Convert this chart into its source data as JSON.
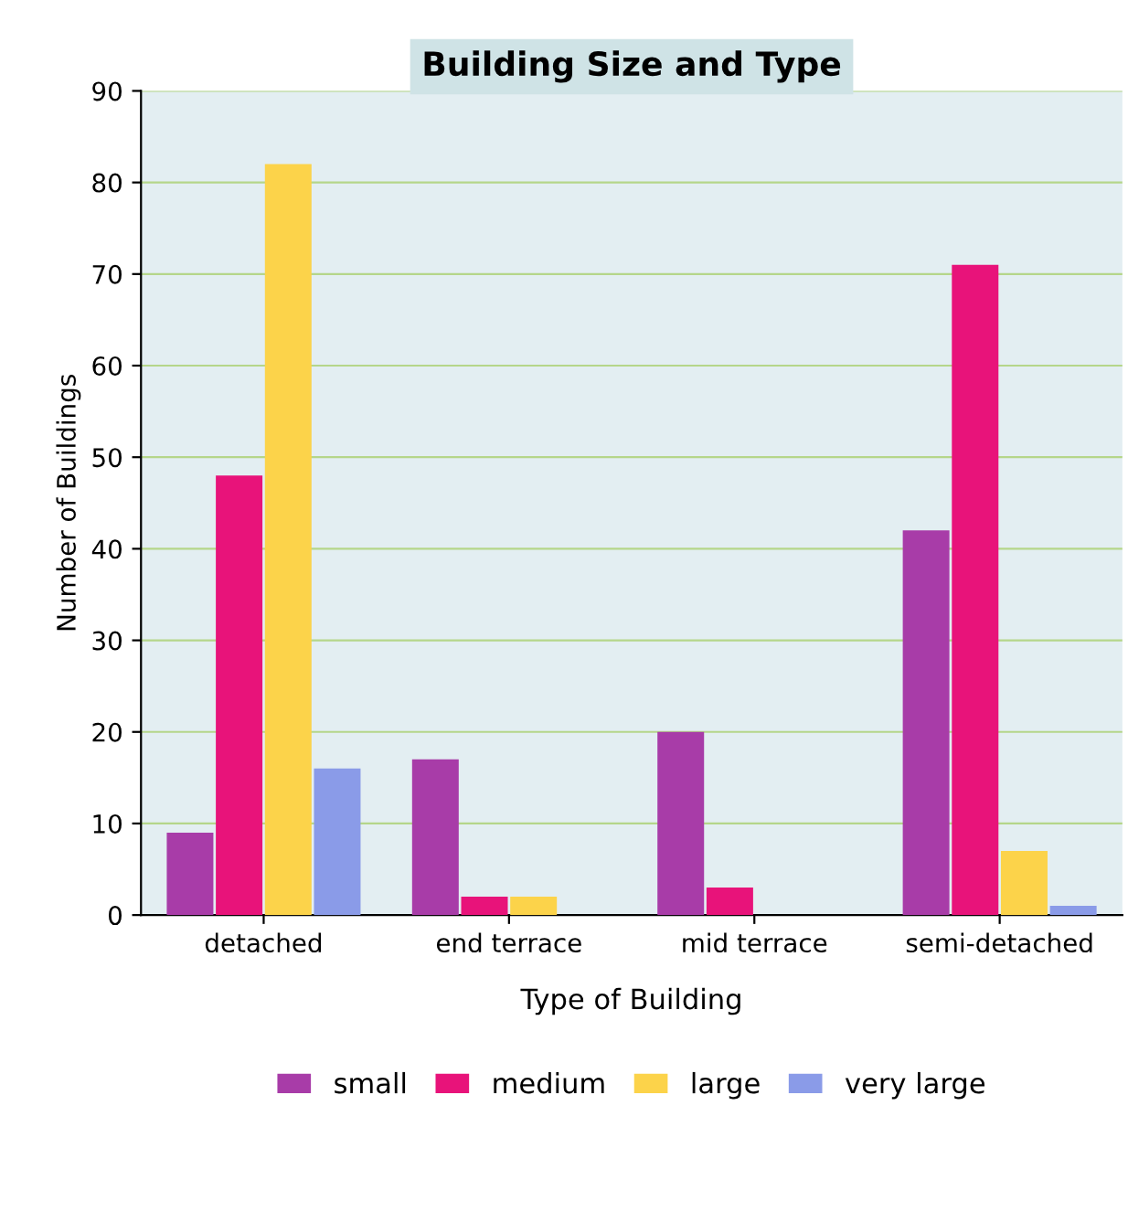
{
  "chart_data": {
    "type": "bar",
    "title": "Building Size and Type",
    "xlabel": "Type of Building",
    "ylabel": "Number of Buildings",
    "categories": [
      "detached",
      "end terrace",
      "mid terrace",
      "semi-detached"
    ],
    "series": [
      {
        "name": "small",
        "color": "#a83ca8",
        "values": [
          9,
          17,
          20,
          42
        ]
      },
      {
        "name": "medium",
        "color": "#e8137a",
        "values": [
          48,
          2,
          3,
          71
        ]
      },
      {
        "name": "large",
        "color": "#fcd34a",
        "values": [
          82,
          2,
          0,
          7
        ]
      },
      {
        "name": "very large",
        "color": "#8a9be8",
        "values": [
          16,
          0,
          0,
          1
        ]
      }
    ],
    "ylim": [
      0,
      90
    ],
    "yticks": [
      0,
      10,
      20,
      30,
      40,
      50,
      60,
      70,
      80,
      90
    ],
    "grid": "y",
    "legend": "bottom"
  }
}
